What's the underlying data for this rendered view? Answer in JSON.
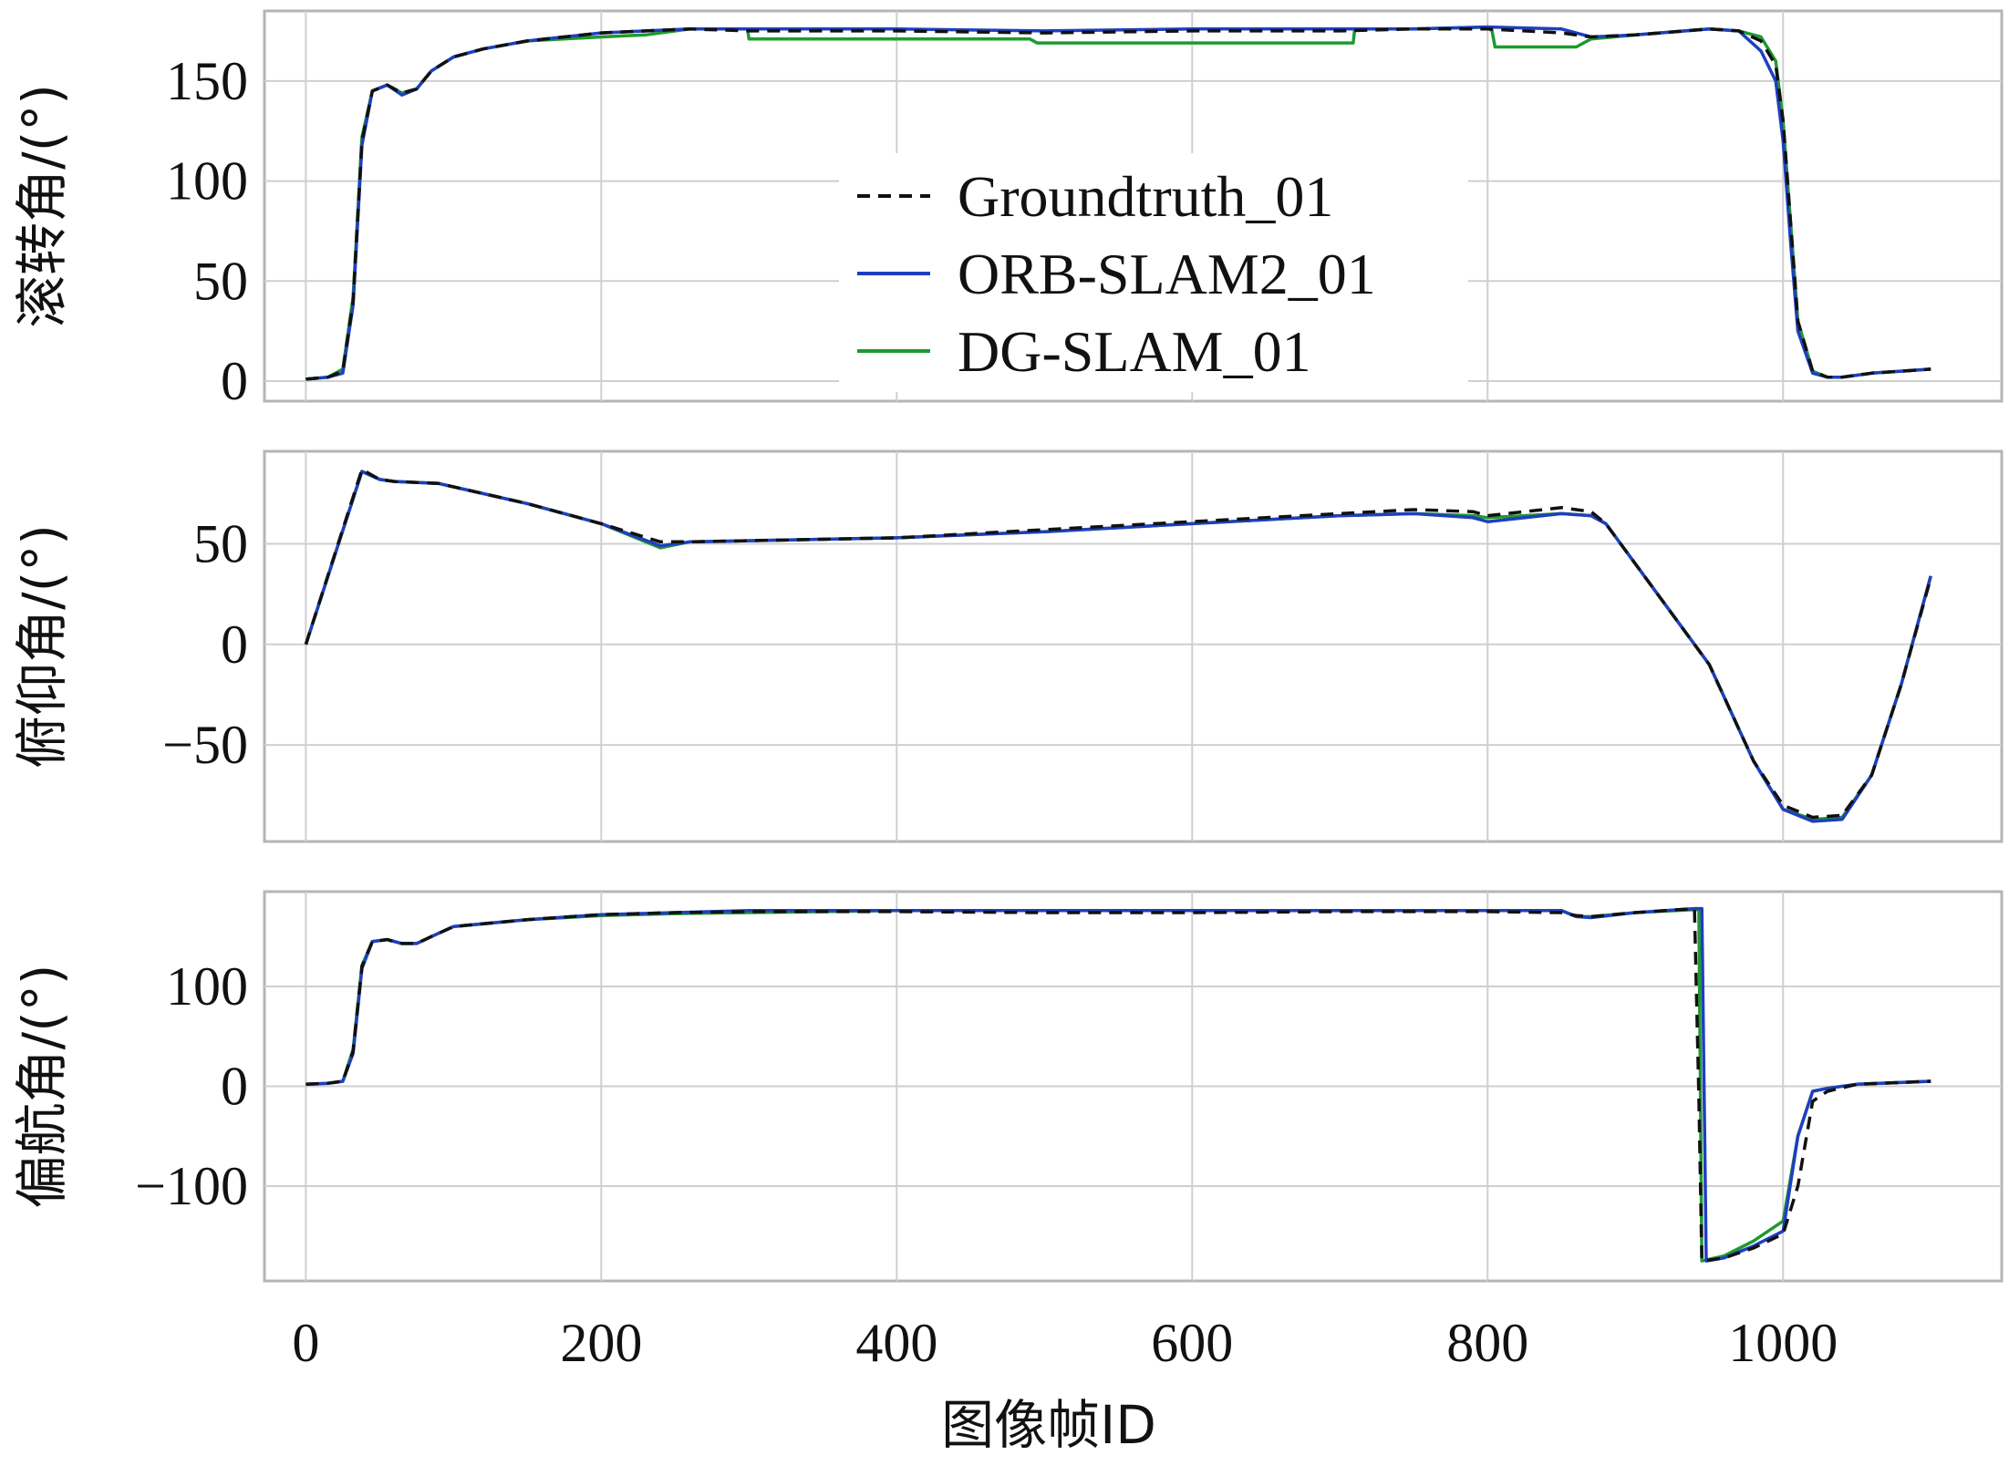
{
  "chart_data": [
    {
      "type": "line",
      "ylabel": "滚转角/(°)",
      "xlim": [
        -28,
        1148
      ],
      "ylim": [
        -10,
        185
      ],
      "xticks": [
        0,
        200,
        400,
        600,
        800,
        1000
      ],
      "yticks": [
        0,
        50,
        100,
        150
      ],
      "ytick_labels": [
        "0",
        "50",
        "100",
        "150"
      ],
      "grid": true,
      "legend_position": "center",
      "series": [
        {
          "name": "Groundtruth_01",
          "color": "#111111",
          "style": "dashed",
          "x": [
            0,
            15,
            25,
            32,
            38,
            45,
            55,
            65,
            75,
            85,
            100,
            120,
            150,
            200,
            230,
            260,
            300,
            400,
            500,
            600,
            700,
            750,
            800,
            850,
            870,
            900,
            950,
            970,
            985,
            995,
            1000,
            1005,
            1010,
            1020,
            1030,
            1040,
            1060,
            1080,
            1100
          ],
          "y": [
            1,
            2,
            5,
            40,
            120,
            145,
            148,
            144,
            146,
            155,
            162,
            166,
            170,
            174,
            175,
            176,
            175,
            175,
            174,
            175,
            175,
            176,
            176,
            174,
            172,
            173,
            176,
            175,
            170,
            158,
            130,
            80,
            30,
            5,
            2,
            2,
            4,
            5,
            6
          ]
        },
        {
          "name": "ORB-SLAM2_01",
          "color": "#1f3fbf",
          "style": "solid",
          "x": [
            0,
            15,
            25,
            32,
            38,
            45,
            55,
            65,
            75,
            85,
            100,
            120,
            150,
            200,
            230,
            260,
            300,
            400,
            500,
            600,
            700,
            750,
            800,
            850,
            870,
            900,
            950,
            970,
            985,
            995,
            1000,
            1005,
            1010,
            1020,
            1030,
            1040,
            1060,
            1080,
            1100
          ],
          "y": [
            1,
            2,
            4,
            38,
            118,
            145,
            148,
            143,
            146,
            155,
            162,
            166,
            170,
            174,
            175,
            176,
            176,
            176,
            175,
            176,
            176,
            176,
            177,
            176,
            172,
            173,
            176,
            175,
            165,
            150,
            120,
            70,
            25,
            4,
            2,
            2,
            4,
            5,
            6
          ]
        },
        {
          "name": "DG-SLAM_01",
          "color": "#1e9a2e",
          "style": "solid",
          "x": [
            0,
            15,
            25,
            32,
            38,
            45,
            55,
            65,
            75,
            85,
            100,
            120,
            150,
            200,
            230,
            260,
            299,
            300,
            400,
            490,
            495,
            500,
            600,
            709,
            710,
            750,
            800,
            803,
            805,
            860,
            870,
            900,
            950,
            970,
            985,
            995,
            1000,
            1005,
            1010,
            1020,
            1030,
            1040,
            1060,
            1080,
            1100
          ],
          "y": [
            1,
            2,
            6,
            42,
            122,
            145,
            148,
            144,
            146,
            155,
            162,
            166,
            170,
            172,
            173,
            176,
            176,
            171,
            171,
            171,
            169,
            169,
            169,
            169,
            176,
            176,
            177,
            175,
            167,
            167,
            171,
            173,
            176,
            175,
            172,
            160,
            130,
            80,
            30,
            5,
            2,
            2,
            4,
            5,
            6
          ]
        }
      ]
    },
    {
      "type": "line",
      "ylabel": "俯仰角/(°)",
      "xlim": [
        -28,
        1148
      ],
      "ylim": [
        -98,
        96
      ],
      "xticks": [
        0,
        200,
        400,
        600,
        800,
        1000
      ],
      "yticks": [
        -50,
        0,
        50
      ],
      "ytick_labels": [
        "−50",
        "0",
        "50"
      ],
      "grid": true,
      "series": [
        {
          "name": "Groundtruth_01",
          "color": "#111111",
          "style": "dashed",
          "x": [
            0,
            38,
            50,
            60,
            90,
            150,
            200,
            240,
            260,
            400,
            500,
            600,
            700,
            750,
            790,
            800,
            850,
            870,
            880,
            900,
            950,
            980,
            1000,
            1020,
            1040,
            1060,
            1080,
            1100
          ],
          "y": [
            0,
            87,
            82,
            81,
            80,
            70,
            60,
            51,
            51,
            53,
            57,
            61,
            65,
            67,
            66,
            64,
            68,
            66,
            60,
            40,
            -10,
            -58,
            -80,
            -86,
            -85,
            -65,
            -20,
            33
          ]
        },
        {
          "name": "ORB-SLAM2_01",
          "color": "#1f3fbf",
          "style": "solid",
          "x": [
            0,
            38,
            50,
            60,
            90,
            150,
            200,
            240,
            260,
            400,
            500,
            600,
            700,
            750,
            790,
            800,
            850,
            870,
            880,
            900,
            950,
            980,
            1000,
            1020,
            1040,
            1060,
            1080,
            1100
          ],
          "y": [
            0,
            86,
            82,
            81,
            80,
            70,
            60,
            49,
            51,
            53,
            56,
            60,
            64,
            65,
            63,
            61,
            65,
            64,
            60,
            40,
            -10,
            -58,
            -82,
            -88,
            -87,
            -65,
            -20,
            34
          ]
        },
        {
          "name": "DG-SLAM_01",
          "color": "#1e9a2e",
          "style": "solid",
          "x": [
            0,
            38,
            50,
            60,
            90,
            150,
            200,
            240,
            260,
            400,
            500,
            600,
            700,
            750,
            790,
            800,
            850,
            870,
            880,
            900,
            950,
            980,
            1000,
            1020,
            1040,
            1060,
            1080,
            1100
          ],
          "y": [
            0,
            86,
            82,
            81,
            80,
            70,
            60,
            48,
            51,
            53,
            56,
            60,
            64,
            65,
            64,
            63,
            65,
            64,
            60,
            40,
            -10,
            -58,
            -82,
            -87,
            -86,
            -65,
            -20,
            34
          ]
        }
      ]
    },
    {
      "type": "line",
      "xlabel": "图像帧ID",
      "ylabel": "偏航角/(°)",
      "xlim": [
        -28,
        1148
      ],
      "ylim": [
        -195,
        195
      ],
      "xticks": [
        0,
        200,
        400,
        600,
        800,
        1000
      ],
      "xtick_labels": [
        "0",
        "200",
        "400",
        "600",
        "800",
        "1000"
      ],
      "yticks": [
        -100,
        0,
        100
      ],
      "ytick_labels": [
        "−100",
        "0",
        "100"
      ],
      "grid": true,
      "series": [
        {
          "name": "Groundtruth_01",
          "color": "#111111",
          "style": "dashed",
          "x": [
            0,
            15,
            25,
            32,
            38,
            45,
            55,
            65,
            75,
            85,
            100,
            150,
            200,
            250,
            300,
            400,
            500,
            600,
            700,
            800,
            850,
            860,
            870,
            900,
            940,
            943,
            945,
            960,
            980,
            1000,
            1010,
            1020,
            1030,
            1050,
            1100
          ],
          "y": [
            2,
            3,
            5,
            35,
            120,
            145,
            147,
            143,
            143,
            150,
            160,
            167,
            172,
            174,
            175,
            175,
            174,
            174,
            175,
            175,
            174,
            171,
            170,
            174,
            178,
            -10,
            -175,
            -172,
            -162,
            -148,
            -100,
            -15,
            -5,
            2,
            5
          ]
        },
        {
          "name": "ORB-SLAM2_01",
          "color": "#1f3fbf",
          "style": "solid",
          "x": [
            0,
            15,
            25,
            32,
            38,
            45,
            55,
            65,
            75,
            85,
            100,
            150,
            200,
            250,
            300,
            400,
            500,
            600,
            700,
            800,
            850,
            860,
            870,
            900,
            940,
            945,
            948,
            960,
            980,
            1000,
            1010,
            1020,
            1030,
            1050,
            1100
          ],
          "y": [
            2,
            3,
            5,
            33,
            118,
            145,
            147,
            143,
            143,
            150,
            160,
            167,
            172,
            174,
            176,
            176,
            176,
            176,
            176,
            176,
            176,
            170,
            169,
            174,
            178,
            178,
            -175,
            -172,
            -160,
            -145,
            -50,
            -5,
            -2,
            2,
            5
          ]
        },
        {
          "name": "DG-SLAM_01",
          "color": "#1e9a2e",
          "style": "solid",
          "x": [
            0,
            15,
            25,
            32,
            38,
            45,
            55,
            65,
            75,
            85,
            100,
            150,
            200,
            250,
            300,
            400,
            500,
            600,
            700,
            800,
            850,
            860,
            870,
            900,
            940,
            943,
            945,
            960,
            980,
            1000,
            1010,
            1020,
            1030,
            1050,
            1100
          ],
          "y": [
            2,
            3,
            5,
            37,
            121,
            145,
            147,
            143,
            143,
            150,
            160,
            167,
            171,
            173,
            174,
            176,
            176,
            176,
            176,
            176,
            176,
            170,
            170,
            174,
            177,
            177,
            -175,
            -170,
            -155,
            -135,
            -50,
            -5,
            -2,
            2,
            5
          ]
        }
      ]
    }
  ]
}
